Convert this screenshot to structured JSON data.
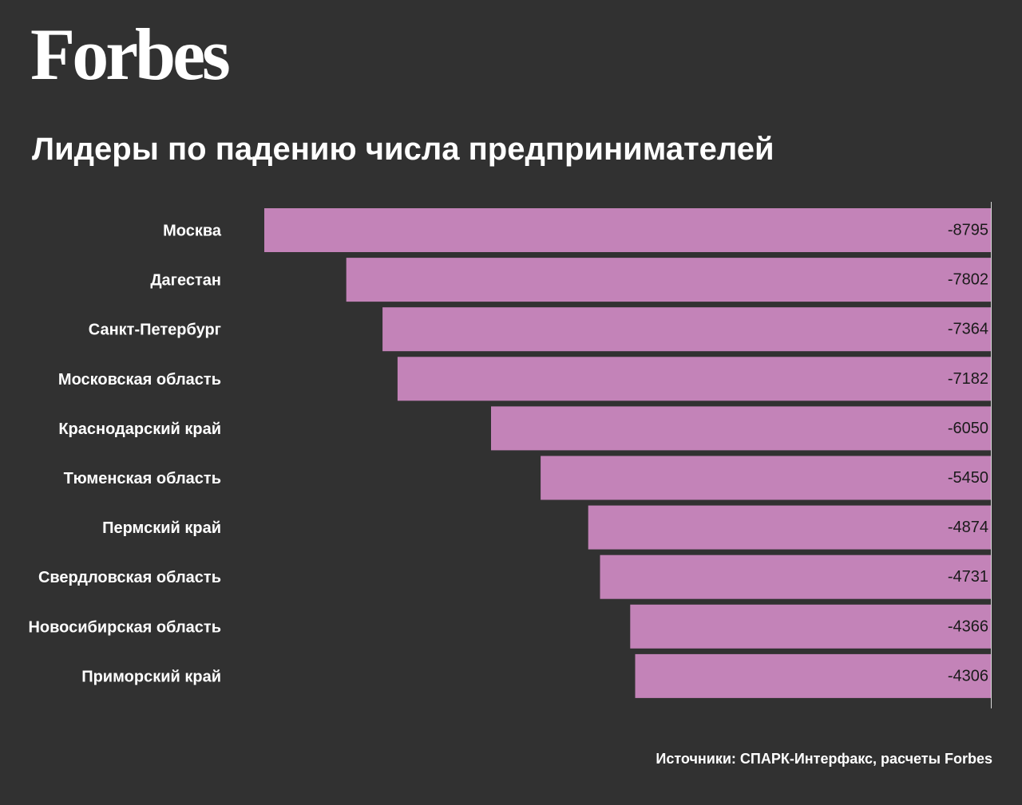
{
  "brand": {
    "logo_text": "Forbes"
  },
  "header": {
    "title": "Лидеры по падению числа предпринимателей"
  },
  "footer": {
    "source": "Источники: СПАРК-Интерфакс, расчеты Forbes"
  },
  "colors": {
    "background": "#313131",
    "bar": "#c383b8",
    "bar_label": "#1a1a1a",
    "text": "#ffffff",
    "axis": "#d9d9d9"
  },
  "chart_data": {
    "type": "bar",
    "orientation": "horizontal",
    "title": "Лидеры по падению числа предпринимателей",
    "xlabel": "",
    "ylabel": "",
    "categories": [
      "Москва",
      "Дагестан",
      "Санкт-Петербург",
      "Московская область",
      "Краснодарский край",
      "Тюменская область",
      "Пермский край",
      "Свердловская область",
      "Новосибирская область",
      "Приморский край"
    ],
    "values": [
      -8795,
      -7802,
      -7364,
      -7182,
      -6050,
      -5450,
      -4874,
      -4731,
      -4366,
      -4306
    ],
    "value_labels": [
      "-8795",
      "-7802",
      "-7364",
      "-7182",
      "-6050",
      "-5450",
      "-4874",
      "-4731",
      "-4366",
      "-4306"
    ],
    "xlim": [
      -8795,
      0
    ],
    "grid": false,
    "legend": "none"
  }
}
